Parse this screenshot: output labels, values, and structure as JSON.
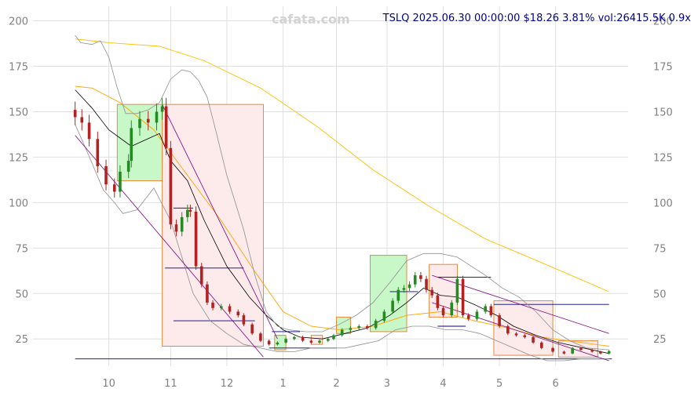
{
  "watermark": "cafata.com",
  "header": {
    "text": "TSLQ 2025.06.30 00:00:00 $18.26 3.81% vol:26415.5K 0.9x"
  },
  "chart_data": {
    "type": "candlestick",
    "ylim": [
      10,
      208
    ],
    "yticks": [
      25,
      50,
      75,
      100,
      125,
      150,
      175,
      200
    ],
    "xticks": [
      {
        "label": "10",
        "t": 0.6
      },
      {
        "label": "11",
        "t": 1.7
      },
      {
        "label": "12",
        "t": 2.7
      },
      {
        "label": "1",
        "t": 3.7
      },
      {
        "label": "2",
        "t": 4.65
      },
      {
        "label": "3",
        "t": 5.55
      },
      {
        "label": "4",
        "t": 6.55
      },
      {
        "label": "5",
        "t": 7.55
      },
      {
        "label": "6",
        "t": 8.55
      }
    ],
    "tRange": [
      -0.75,
      9.7
    ],
    "colors": {
      "up": "#228b22",
      "down": "#b22222",
      "upBox": "#c8f7c8",
      "downBox": "#fdeaea",
      "boxEdge": "#e8893a",
      "level": "#00008b"
    },
    "closes": [
      [
        0.0,
        147
      ],
      [
        0.12,
        144
      ],
      [
        0.25,
        135
      ],
      [
        0.4,
        120
      ],
      [
        0.55,
        110
      ],
      [
        0.7,
        106
      ],
      [
        0.8,
        117
      ],
      [
        0.95,
        123
      ],
      [
        1.0,
        141
      ],
      [
        1.15,
        146
      ],
      [
        1.3,
        144
      ],
      [
        1.45,
        150
      ],
      [
        1.55,
        153
      ],
      [
        1.62,
        130
      ],
      [
        1.7,
        88
      ],
      [
        1.8,
        84
      ],
      [
        1.9,
        92
      ],
      [
        2.0,
        96
      ],
      [
        2.05,
        95
      ],
      [
        2.15,
        65
      ],
      [
        2.25,
        55
      ],
      [
        2.35,
        45
      ],
      [
        2.45,
        42
      ],
      [
        2.6,
        43
      ],
      [
        2.75,
        40
      ],
      [
        2.9,
        38
      ],
      [
        3.0,
        33
      ],
      [
        3.15,
        28
      ],
      [
        3.3,
        24
      ],
      [
        3.45,
        22
      ],
      [
        3.6,
        23
      ],
      [
        3.75,
        25
      ],
      [
        3.9,
        26
      ],
      [
        4.05,
        24
      ],
      [
        4.2,
        23
      ],
      [
        4.35,
        24
      ],
      [
        4.5,
        25
      ],
      [
        4.6,
        27
      ],
      [
        4.75,
        30
      ],
      [
        4.9,
        31
      ],
      [
        5.05,
        32
      ],
      [
        5.2,
        31
      ],
      [
        5.35,
        35
      ],
      [
        5.5,
        40
      ],
      [
        5.65,
        46
      ],
      [
        5.75,
        52
      ],
      [
        5.85,
        53
      ],
      [
        5.95,
        55
      ],
      [
        6.05,
        60
      ],
      [
        6.15,
        58
      ],
      [
        6.25,
        52
      ],
      [
        6.35,
        49
      ],
      [
        6.45,
        42
      ],
      [
        6.55,
        38
      ],
      [
        6.7,
        45
      ],
      [
        6.8,
        58
      ],
      [
        6.9,
        38
      ],
      [
        7.0,
        36
      ],
      [
        7.15,
        40
      ],
      [
        7.3,
        43
      ],
      [
        7.4,
        38
      ],
      [
        7.55,
        32
      ],
      [
        7.7,
        28
      ],
      [
        7.85,
        27
      ],
      [
        8.0,
        26
      ],
      [
        8.15,
        23
      ],
      [
        8.3,
        20
      ],
      [
        8.5,
        18
      ],
      [
        8.7,
        17
      ],
      [
        8.85,
        20
      ],
      [
        9.0,
        19
      ],
      [
        9.2,
        18
      ],
      [
        9.35,
        17
      ],
      [
        9.5,
        18.3
      ]
    ],
    "overlayLines": [
      {
        "name": "",
        "color": "#ffc000",
        "width": 0.9,
        "points": [
          [
            0,
            190
          ],
          [
            0.6,
            188
          ],
          [
            1.5,
            186
          ],
          [
            2.3,
            178
          ],
          [
            3.3,
            163
          ],
          [
            4.3,
            142
          ],
          [
            5.3,
            118
          ],
          [
            6.3,
            98
          ],
          [
            7.3,
            80
          ],
          [
            8.3,
            67
          ],
          [
            9.5,
            51
          ]
        ]
      },
      {
        "name": "",
        "color": "#ffa500",
        "width": 0.9,
        "points": [
          [
            0,
            164
          ],
          [
            0.3,
            163
          ],
          [
            0.8,
            155
          ],
          [
            1.4,
            140
          ],
          [
            2.0,
            115
          ],
          [
            2.6,
            90
          ],
          [
            3.2,
            62
          ],
          [
            3.7,
            40
          ],
          [
            4.2,
            32
          ],
          [
            4.7,
            30
          ],
          [
            5.3,
            32
          ],
          [
            5.9,
            38
          ],
          [
            6.5,
            40
          ],
          [
            7.1,
            35
          ],
          [
            7.7,
            31
          ],
          [
            8.3,
            26
          ],
          [
            9.5,
            21
          ]
        ]
      },
      {
        "name": "",
        "color": "#000000",
        "width": 0.8,
        "points": [
          [
            0,
            162
          ],
          [
            0.3,
            152
          ],
          [
            0.6,
            140
          ],
          [
            1.0,
            131
          ],
          [
            1.5,
            138
          ],
          [
            1.7,
            123
          ],
          [
            2.0,
            112
          ],
          [
            2.3,
            90
          ],
          [
            2.7,
            65
          ],
          [
            3.1,
            48
          ],
          [
            3.4,
            38
          ],
          [
            3.7,
            30
          ],
          [
            4.0,
            26
          ],
          [
            4.4,
            25
          ],
          [
            4.8,
            28
          ],
          [
            5.2,
            31
          ],
          [
            5.6,
            38
          ],
          [
            5.9,
            45
          ],
          [
            6.2,
            53
          ],
          [
            6.5,
            49
          ],
          [
            6.8,
            48
          ],
          [
            7.1,
            44
          ],
          [
            7.5,
            38
          ],
          [
            7.8,
            32
          ],
          [
            8.2,
            27
          ],
          [
            8.6,
            23
          ],
          [
            9.5,
            17
          ]
        ]
      },
      {
        "name": "",
        "color": "#909090",
        "width": 0.8,
        "points": [
          [
            0,
            192
          ],
          [
            0.1,
            188
          ],
          [
            0.3,
            187
          ],
          [
            0.45,
            189
          ],
          [
            0.6,
            180
          ],
          [
            0.75,
            163
          ],
          [
            0.9,
            149
          ],
          [
            1.1,
            149
          ],
          [
            1.3,
            151
          ],
          [
            1.5,
            155
          ],
          [
            1.7,
            168
          ],
          [
            1.9,
            173
          ],
          [
            2.05,
            172
          ],
          [
            2.2,
            167
          ],
          [
            2.35,
            158
          ],
          [
            2.5,
            140
          ],
          [
            2.7,
            115
          ],
          [
            2.85,
            100
          ],
          [
            3.0,
            85
          ],
          [
            3.2,
            60
          ],
          [
            3.4,
            40
          ],
          [
            3.6,
            32
          ],
          [
            3.8,
            30
          ],
          [
            4.1,
            29
          ],
          [
            4.4,
            29
          ],
          [
            4.7,
            33
          ],
          [
            5.0,
            38
          ],
          [
            5.3,
            45
          ],
          [
            5.6,
            56
          ],
          [
            5.9,
            68
          ],
          [
            6.2,
            72
          ],
          [
            6.5,
            72
          ],
          [
            6.8,
            70
          ],
          [
            7.0,
            66
          ],
          [
            7.3,
            60
          ],
          [
            7.6,
            53
          ],
          [
            7.9,
            48
          ],
          [
            8.2,
            40
          ],
          [
            8.5,
            30
          ],
          [
            8.8,
            24
          ],
          [
            9.1,
            20
          ],
          [
            9.5,
            19
          ]
        ]
      },
      {
        "name": "",
        "color": "#909090",
        "width": 0.8,
        "points": [
          [
            0,
            143
          ],
          [
            0.2,
            129
          ],
          [
            0.5,
            107
          ],
          [
            0.7,
            100
          ],
          [
            0.85,
            94
          ],
          [
            1.1,
            96
          ],
          [
            1.4,
            108
          ],
          [
            1.7,
            90
          ],
          [
            1.9,
            70
          ],
          [
            2.1,
            50
          ],
          [
            2.4,
            35
          ],
          [
            2.7,
            28
          ],
          [
            3.0,
            22
          ],
          [
            3.3,
            20
          ],
          [
            3.6,
            18
          ],
          [
            3.9,
            18
          ],
          [
            4.2,
            20
          ],
          [
            4.5,
            20
          ],
          [
            4.8,
            20
          ],
          [
            5.1,
            22
          ],
          [
            5.4,
            24
          ],
          [
            5.7,
            30
          ],
          [
            6.0,
            32
          ],
          [
            6.3,
            32
          ],
          [
            6.6,
            30
          ],
          [
            6.9,
            30
          ],
          [
            7.2,
            28
          ],
          [
            7.5,
            24
          ],
          [
            7.8,
            20
          ],
          [
            8.1,
            16
          ],
          [
            8.4,
            13
          ],
          [
            8.7,
            13
          ],
          [
            9.0,
            14
          ],
          [
            9.5,
            14
          ]
        ]
      },
      {
        "name": "",
        "color": "#800080",
        "width": 0.8,
        "points": [
          [
            1.55,
            154
          ],
          [
            3.6,
            25
          ]
        ]
      },
      {
        "name": "",
        "color": "#800080",
        "width": 0.8,
        "points": [
          [
            0.0,
            137
          ],
          [
            3.35,
            15
          ]
        ]
      },
      {
        "name": "",
        "color": "#800080",
        "width": 0.8,
        "points": [
          [
            6.35,
            60
          ],
          [
            9.5,
            28
          ]
        ]
      },
      {
        "name": "",
        "color": "#800080",
        "width": 0.8,
        "points": [
          [
            6.35,
            45
          ],
          [
            9.5,
            13
          ]
        ]
      }
    ],
    "boxes": [
      {
        "kind": "up",
        "t0": 0.75,
        "t1": 1.55,
        "lo": 112,
        "hi": 154
      },
      {
        "kind": "down",
        "t0": 1.55,
        "t1": 3.35,
        "lo": 21,
        "hi": 154
      },
      {
        "kind": "up",
        "t0": 3.55,
        "t1": 3.75,
        "lo": 19,
        "hi": 27
      },
      {
        "kind": "down",
        "t0": 4.2,
        "t1": 4.4,
        "lo": 22,
        "hi": 27
      },
      {
        "kind": "up",
        "t0": 4.65,
        "t1": 4.9,
        "lo": 28,
        "hi": 37
      },
      {
        "kind": "up",
        "t0": 5.25,
        "t1": 5.9,
        "lo": 29,
        "hi": 71
      },
      {
        "kind": "down",
        "t0": 6.3,
        "t1": 6.8,
        "lo": 37,
        "hi": 66
      },
      {
        "kind": "down",
        "t0": 7.45,
        "t1": 8.5,
        "lo": 16,
        "hi": 46
      },
      {
        "kind": "down",
        "t0": 8.6,
        "t1": 9.3,
        "lo": 15,
        "hi": 24
      }
    ],
    "levels": [
      {
        "y": 14,
        "t0": 0.0,
        "t1": 9.55
      },
      {
        "y": 44,
        "t0": 7.45,
        "t1": 9.5
      },
      {
        "y": 59,
        "t0": 6.45,
        "t1": 7.4
      },
      {
        "y": 64,
        "t0": 1.6,
        "t1": 3.0
      },
      {
        "y": 35,
        "t0": 1.75,
        "t1": 3.2
      },
      {
        "y": 32,
        "t0": 6.45,
        "t1": 6.95
      },
      {
        "y": 97,
        "t0": 1.75,
        "t1": 2.1
      },
      {
        "y": 20,
        "t0": 3.45,
        "t1": 4.65
      },
      {
        "y": 29,
        "t0": 3.5,
        "t1": 4.0
      },
      {
        "y": 51,
        "t0": 5.6,
        "t1": 6.1
      }
    ]
  }
}
